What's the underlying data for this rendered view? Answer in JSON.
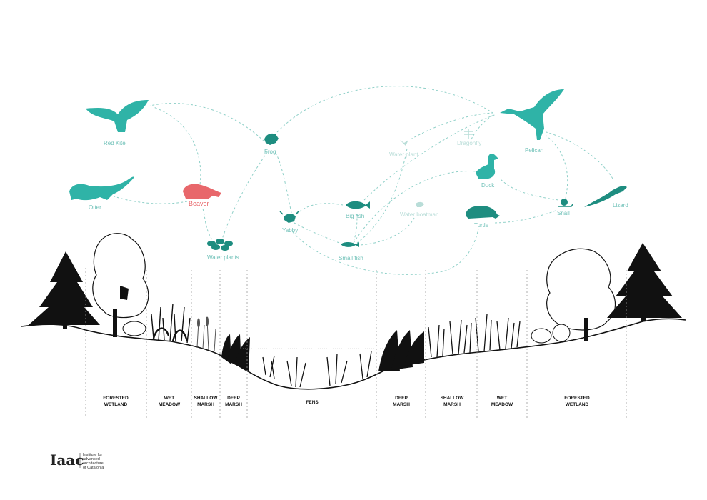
{
  "colors": {
    "teal": "#2fb3a7",
    "teal_light": "#8fd0c8",
    "teal_faded": "#b9ddd8",
    "red": "#e8676b",
    "ink": "#111111"
  },
  "organisms": {
    "red_kite": "Red Kite",
    "otter": "Otter",
    "beaver": "Beaver",
    "frog": "Frog",
    "water_plants": "Water plants",
    "yabby": "Yabby",
    "big_fish": "Big fish",
    "small_fish": "Small fish",
    "water_plant": "Water plant",
    "water_boatman": "Water boatman",
    "dragonfly": "Dragonfly",
    "pelican": "Pelican",
    "duck": "Duck",
    "turtle": "Turtle",
    "snail": "Snail",
    "lizard": "Lizard"
  },
  "zones": {
    "forested_wetland_left": [
      "FORESTED",
      "WETLAND"
    ],
    "wet_meadow_left": [
      "WET",
      "MEADOW"
    ],
    "shallow_marsh_left": [
      "SHALLOW",
      "MARSH"
    ],
    "deep_marsh_left": [
      "DEEP",
      "MARSH"
    ],
    "fens": [
      "FENS"
    ],
    "deep_marsh_right": [
      "DEEP",
      "MARSH"
    ],
    "shallow_marsh_right": [
      "SHALLOW",
      "MARSH"
    ],
    "wet_meadow_right": [
      "WET",
      "MEADOW"
    ],
    "forested_wetland_right": [
      "FORESTED",
      "WETLAND"
    ]
  },
  "logo": {
    "mark": "Iaac",
    "lines": [
      "Institute for",
      "advanced",
      "architecture",
      "of Catalonia"
    ]
  },
  "icons": {
    "eagle": "bird-icon",
    "otter": "otter-icon",
    "beaver": "beaver-icon",
    "frog": "frog-icon",
    "lily": "lily-pad-icon",
    "crayfish": "crayfish-icon",
    "fish": "fish-icon",
    "pelican": "pelican-icon",
    "duck": "duck-icon",
    "turtle": "turtle-icon",
    "snail": "snail-icon",
    "lizard": "lizard-icon"
  }
}
